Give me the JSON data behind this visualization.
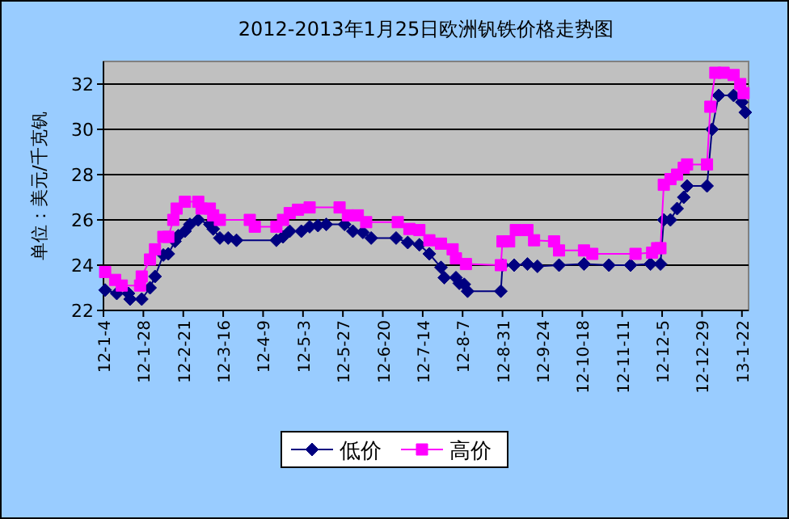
{
  "chart_data": {
    "type": "line",
    "title": "2012-2013年1月25日欧洲钒铁价格走势图",
    "ylabel": "单位：美元/千克钒",
    "xlim": [
      "2012-01-04",
      "2013-01-26"
    ],
    "ylim": [
      22,
      33
    ],
    "yticks": [
      22,
      24,
      26,
      28,
      30,
      32
    ],
    "xticks": [
      {
        "value": "2012-01-04",
        "label": "12-1-4"
      },
      {
        "value": "2012-01-28",
        "label": "12-1-28"
      },
      {
        "value": "2012-02-21",
        "label": "12-2-21"
      },
      {
        "value": "2012-03-16",
        "label": "12-3-16"
      },
      {
        "value": "2012-04-09",
        "label": "12-4-9"
      },
      {
        "value": "2012-05-03",
        "label": "12-5-3"
      },
      {
        "value": "2012-05-27",
        "label": "12-5-27"
      },
      {
        "value": "2012-06-20",
        "label": "12-6-20"
      },
      {
        "value": "2012-07-14",
        "label": "12-7-14"
      },
      {
        "value": "2012-08-07",
        "label": "12-8-7"
      },
      {
        "value": "2012-08-31",
        "label": "12-8-31"
      },
      {
        "value": "2012-09-24",
        "label": "12-9-24"
      },
      {
        "value": "2012-10-18",
        "label": "12-10-18"
      },
      {
        "value": "2012-11-11",
        "label": "12-11-11"
      },
      {
        "value": "2012-12-05",
        "label": "12-12-5"
      },
      {
        "value": "2012-12-29",
        "label": "12-12-29"
      },
      {
        "value": "2013-01-22",
        "label": "13-1-22"
      }
    ],
    "grid": "y",
    "legend": "bottom",
    "line_style": "solid",
    "series": [
      {
        "name": "低价",
        "color": "#000080",
        "marker": "diamond",
        "x": [
          "2012-01-05",
          "2012-01-12",
          "2012-01-19",
          "2012-01-20",
          "2012-01-27",
          "2012-02-01",
          "2012-02-04",
          "2012-02-09",
          "2012-02-12",
          "2012-02-16",
          "2012-02-18",
          "2012-02-22",
          "2012-02-25",
          "2012-03-01",
          "2012-03-08",
          "2012-03-10",
          "2012-03-14",
          "2012-03-19",
          "2012-03-24",
          "2012-04-17",
          "2012-04-21",
          "2012-04-25",
          "2012-05-02",
          "2012-05-07",
          "2012-05-12",
          "2012-05-17",
          "2012-05-28",
          "2012-06-02",
          "2012-06-08",
          "2012-06-13",
          "2012-06-28",
          "2012-07-05",
          "2012-07-12",
          "2012-07-18",
          "2012-07-25",
          "2012-07-27",
          "2012-08-03",
          "2012-08-05",
          "2012-08-08",
          "2012-08-10",
          "2012-08-30",
          "2012-08-31",
          "2012-09-07",
          "2012-09-15",
          "2012-09-21",
          "2012-10-04",
          "2012-10-19",
          "2012-11-03",
          "2012-11-16",
          "2012-11-28",
          "2012-12-04",
          "2012-12-06",
          "2012-12-10",
          "2012-12-14",
          "2012-12-18",
          "2012-12-20",
          "2013-01-01",
          "2013-01-04",
          "2013-01-08",
          "2013-01-17",
          "2013-01-22",
          "2013-01-24"
        ],
        "values": [
          22.9,
          22.75,
          22.75,
          22.5,
          22.5,
          23.0,
          23.5,
          24.45,
          24.5,
          25.05,
          25.3,
          25.5,
          25.8,
          26.0,
          25.8,
          25.6,
          25.2,
          25.2,
          25.1,
          25.1,
          25.25,
          25.5,
          25.5,
          25.7,
          25.75,
          25.8,
          25.8,
          25.5,
          25.45,
          25.2,
          25.2,
          25.0,
          24.9,
          24.5,
          23.9,
          23.45,
          23.45,
          23.2,
          23.15,
          22.85,
          22.85,
          24.0,
          24.0,
          24.05,
          23.95,
          24.0,
          24.05,
          24.0,
          24.0,
          24.05,
          24.05,
          26.0,
          26.0,
          26.5,
          27.0,
          27.5,
          27.5,
          30.0,
          31.5,
          31.5,
          31.2,
          30.75
        ]
      },
      {
        "name": "高价",
        "color": "#ff00ff",
        "marker": "square",
        "x": [
          "2012-01-05",
          "2012-01-11",
          "2012-01-15",
          "2012-01-26",
          "2012-01-27",
          "2012-02-01",
          "2012-02-04",
          "2012-02-09",
          "2012-02-12",
          "2012-02-15",
          "2012-02-17",
          "2012-02-22",
          "2012-03-01",
          "2012-03-03",
          "2012-03-08",
          "2012-03-10",
          "2012-03-14",
          "2012-04-01",
          "2012-04-04",
          "2012-04-17",
          "2012-04-21",
          "2012-04-25",
          "2012-04-30",
          "2012-05-07",
          "2012-05-25",
          "2012-05-30",
          "2012-06-05",
          "2012-06-10",
          "2012-06-29",
          "2012-07-06",
          "2012-07-12",
          "2012-07-18",
          "2012-07-25",
          "2012-08-01",
          "2012-08-03",
          "2012-08-09",
          "2012-08-30",
          "2012-08-31",
          "2012-09-04",
          "2012-09-08",
          "2012-09-15",
          "2012-09-19",
          "2012-10-01",
          "2012-10-04",
          "2012-10-19",
          "2012-10-24",
          "2012-11-19",
          "2012-11-29",
          "2012-12-02",
          "2012-12-04",
          "2012-12-06",
          "2012-12-10",
          "2012-12-14",
          "2012-12-18",
          "2012-12-20",
          "2013-01-01",
          "2013-01-03",
          "2013-01-06",
          "2013-01-11",
          "2013-01-17",
          "2013-01-21",
          "2013-01-23"
        ],
        "values": [
          23.7,
          23.35,
          23.1,
          23.1,
          23.5,
          24.25,
          24.7,
          25.25,
          25.25,
          26.0,
          26.5,
          26.8,
          26.8,
          26.5,
          26.5,
          26.2,
          26.0,
          26.0,
          25.7,
          25.7,
          26.0,
          26.3,
          26.45,
          26.55,
          26.55,
          26.2,
          26.2,
          25.9,
          25.9,
          25.6,
          25.55,
          25.1,
          24.95,
          24.7,
          24.3,
          24.05,
          24.0,
          25.05,
          25.05,
          25.55,
          25.55,
          25.1,
          25.05,
          24.65,
          24.65,
          24.5,
          24.5,
          24.55,
          24.75,
          24.75,
          27.55,
          27.8,
          28.0,
          28.3,
          28.45,
          28.45,
          31.0,
          32.5,
          32.5,
          32.4,
          32.0,
          31.6
        ]
      }
    ]
  }
}
